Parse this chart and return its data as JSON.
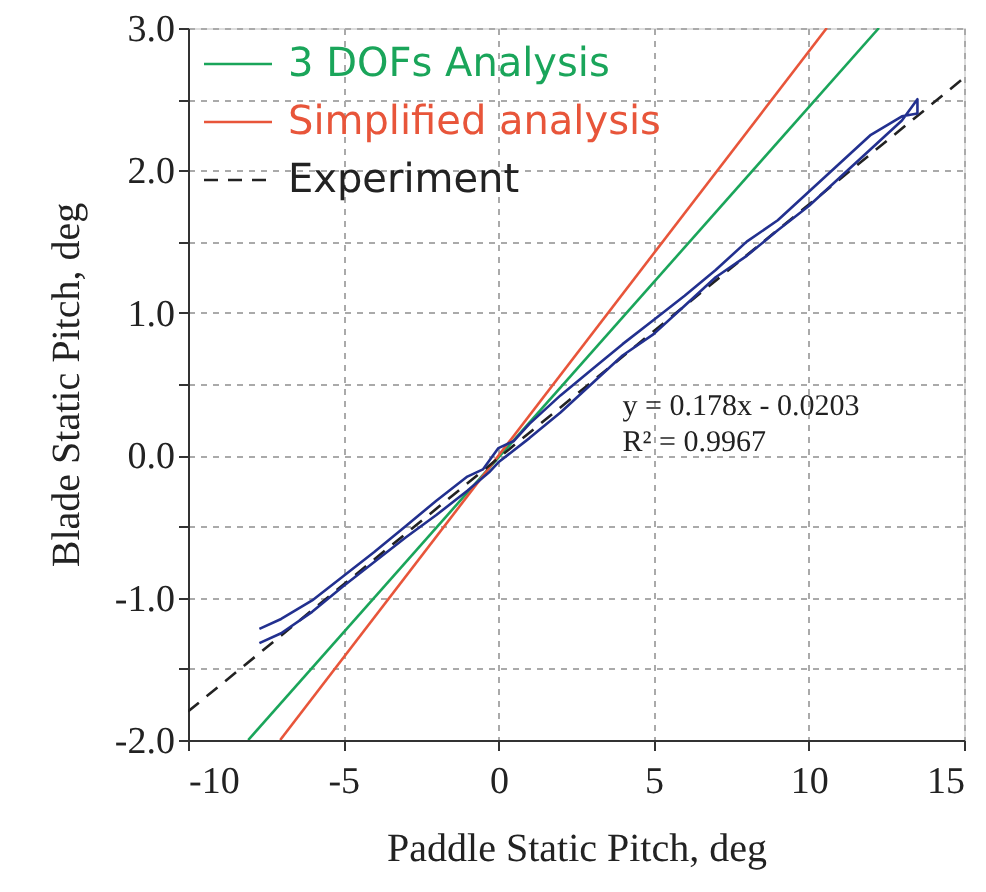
{
  "chart_data": {
    "type": "line",
    "xlabel": "Paddle Static Pitch, deg",
    "ylabel": "Blade Static Pitch, deg",
    "xlim": [
      -10,
      15
    ],
    "xticks": [
      -10,
      -5,
      0,
      5,
      10,
      15
    ],
    "ylim": [
      -2.0,
      3.0
    ],
    "yticks": [
      {
        "value": -2,
        "label": "-2.0"
      },
      {
        "value": -1.5,
        "label": null
      },
      {
        "value": -1,
        "label": "-1.0"
      },
      {
        "value": -0.5,
        "label": null
      },
      {
        "value": 0,
        "label": "0.0"
      },
      {
        "value": 0.5,
        "label": null
      },
      {
        "value": 1,
        "label": "1.0"
      },
      {
        "value": 1.5,
        "label": null
      },
      {
        "value": 2,
        "label": "2.0"
      },
      {
        "value": 2.5,
        "label": null
      },
      {
        "value": 3,
        "label": "3.0"
      }
    ],
    "grid": true,
    "legend": "top left",
    "marker": "none",
    "annotations": [
      "y = 0.178x - 0.0203",
      "R² = 0.9967"
    ],
    "series": [
      {
        "name": "3 DOFs Analysis",
        "color": "#1aa55a",
        "x": [
          -8.06,
          12.26
        ],
        "values": [
          -2.0,
          3.0
        ]
      },
      {
        "name": "Simplified analysis",
        "color": "#e8553a",
        "x": [
          -7.03,
          10.58
        ],
        "values": [
          -2.0,
          3.0
        ]
      },
      {
        "name": "Experiment",
        "color": "#222222",
        "line_style": "dashed",
        "x": [
          -10,
          15
        ],
        "values": [
          -1.8,
          2.65
        ]
      },
      {
        "color": "#22308f",
        "x": [
          -7.7,
          -7,
          -6,
          -5,
          -4,
          -3,
          -2,
          -1,
          -0.3,
          0,
          1,
          2,
          3,
          4,
          5,
          6,
          7,
          8,
          9,
          10,
          11,
          12,
          13,
          13.5,
          13.5,
          13,
          12,
          11,
          10,
          9,
          8,
          7,
          6,
          5,
          4,
          3,
          2,
          1,
          0.5,
          0,
          -0.5,
          -1,
          -2,
          -3,
          -4,
          -5,
          -6,
          -7,
          -7.7
        ],
        "values": [
          -1.32,
          -1.25,
          -1.1,
          -0.92,
          -0.75,
          -0.58,
          -0.42,
          -0.25,
          -0.12,
          -0.05,
          0.12,
          0.3,
          0.5,
          0.7,
          0.85,
          1.05,
          1.25,
          1.4,
          1.58,
          1.75,
          1.95,
          2.15,
          2.35,
          2.5,
          2.4,
          2.38,
          2.25,
          2.05,
          1.85,
          1.65,
          1.5,
          1.3,
          1.12,
          0.95,
          0.78,
          0.6,
          0.42,
          0.22,
          0.1,
          0.05,
          -0.1,
          -0.15,
          -0.32,
          -0.5,
          -0.68,
          -0.85,
          -1.02,
          -1.15,
          -1.22
        ]
      }
    ]
  }
}
